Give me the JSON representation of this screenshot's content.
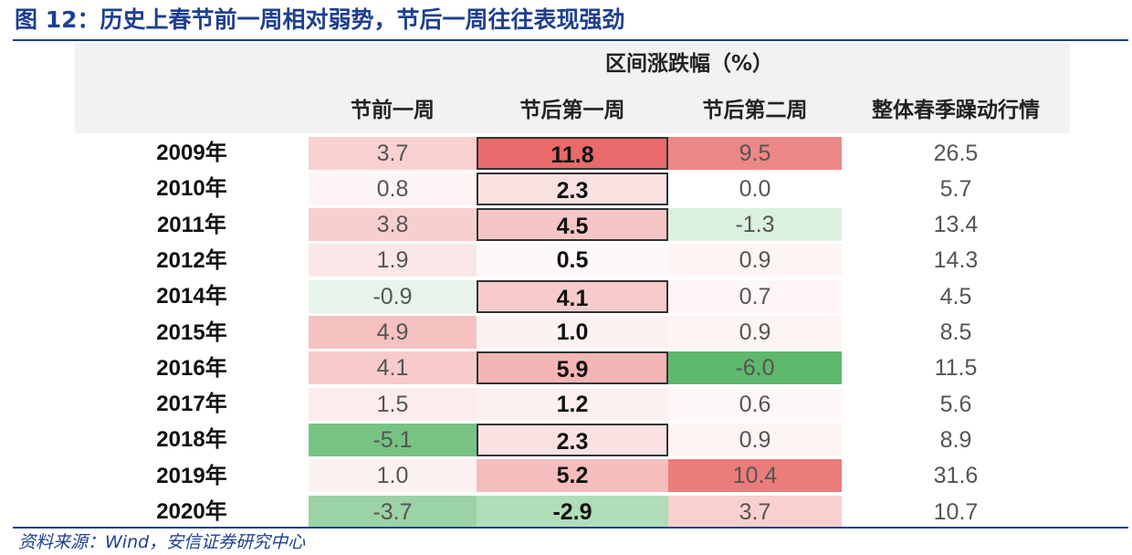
{
  "title": "图 12：历史上春节前一周相对弱势，节后一周往往表现强劲",
  "source": "资料来源：Wind，安信证券研究中心",
  "chart_data": {
    "type": "table",
    "group_header": "区间涨跌幅（%）",
    "columns": [
      "节前一周",
      "节后第一周",
      "节后第二周",
      "整体春季躁动行情"
    ],
    "rows": [
      {
        "year": "2009年",
        "values": [
          "3.7",
          "11.8",
          "9.5",
          "26.5"
        ],
        "boxed": true
      },
      {
        "year": "2010年",
        "values": [
          "0.8",
          "2.3",
          "0.0",
          "5.7"
        ],
        "boxed": true
      },
      {
        "year": "2011年",
        "values": [
          "3.8",
          "4.5",
          "-1.3",
          "13.4"
        ],
        "boxed": true
      },
      {
        "year": "2012年",
        "values": [
          "1.9",
          "0.5",
          "0.9",
          "14.3"
        ],
        "boxed": false
      },
      {
        "year": "2014年",
        "values": [
          "-0.9",
          "4.1",
          "0.7",
          "4.5"
        ],
        "boxed": true
      },
      {
        "year": "2015年",
        "values": [
          "4.9",
          "1.0",
          "0.9",
          "8.5"
        ],
        "boxed": false
      },
      {
        "year": "2016年",
        "values": [
          "4.1",
          "5.9",
          "-6.0",
          "11.5"
        ],
        "boxed": true
      },
      {
        "year": "2017年",
        "values": [
          "1.5",
          "1.2",
          "0.6",
          "5.6"
        ],
        "boxed": false
      },
      {
        "year": "2018年",
        "values": [
          "-5.1",
          "2.3",
          "0.9",
          "8.9"
        ],
        "boxed": true
      },
      {
        "year": "2019年",
        "values": [
          "1.0",
          "5.2",
          "10.4",
          "31.6"
        ],
        "boxed": false
      },
      {
        "year": "2020年",
        "values": [
          "-3.7",
          "-2.9",
          "3.7",
          "10.7"
        ],
        "boxed": false
      }
    ],
    "color_scale": {
      "positive": "#e86a6a",
      "negative": "#5eb86e",
      "neutral": "#ffffff"
    }
  }
}
